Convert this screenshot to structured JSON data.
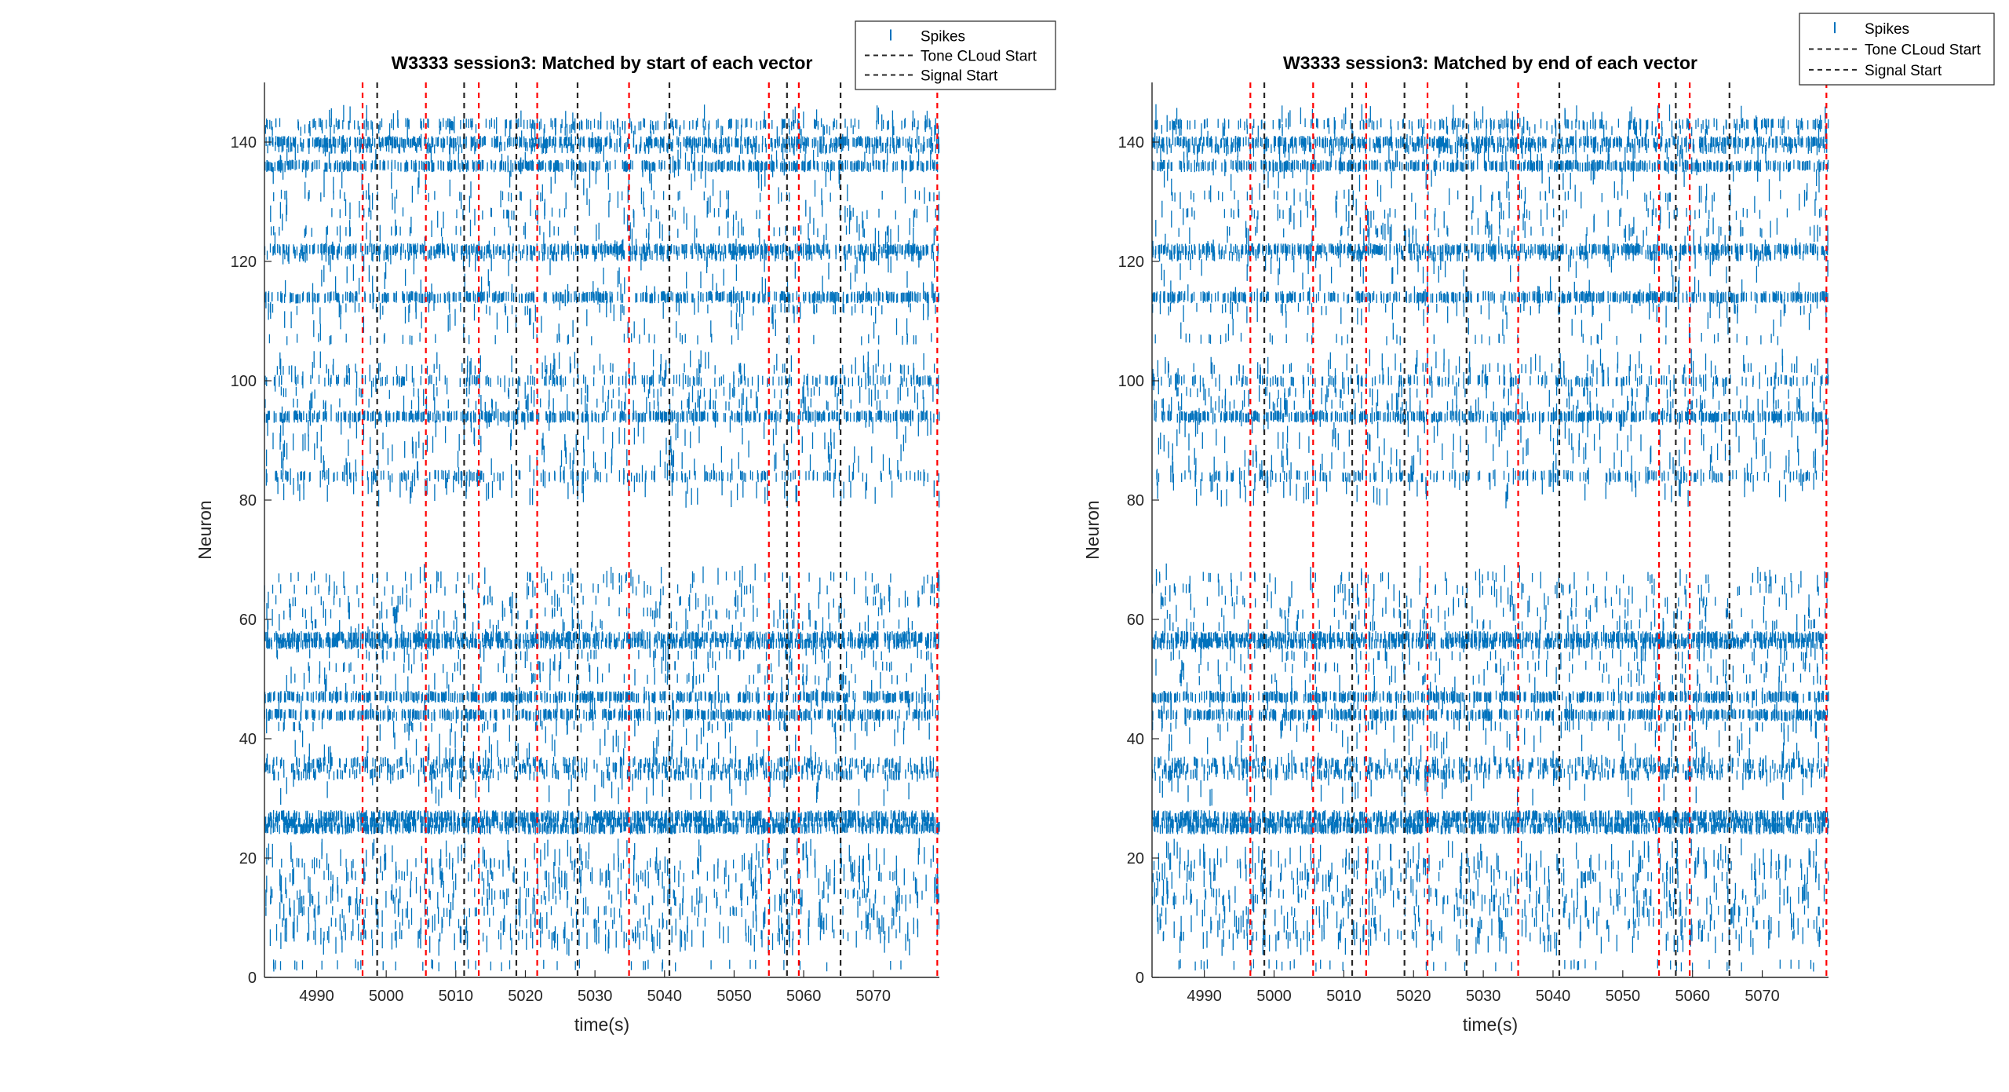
{
  "colors": {
    "spikes": "#0072BD",
    "red_lines": "#FF0000",
    "dark_lines": "#262626"
  },
  "chart_data": [
    {
      "type": "raster",
      "title": "W3333 session3: Matched by start of each vector",
      "xlabel": "time(s)",
      "ylabel": "Neuron",
      "xlim": [
        4982.5,
        5079.5
      ],
      "ylim": [
        0,
        150
      ],
      "xticks": [
        4990,
        5000,
        5010,
        5020,
        5030,
        5040,
        5050,
        5060,
        5070
      ],
      "yticks": [
        0,
        20,
        40,
        60,
        80,
        100,
        120,
        140
      ],
      "legend": {
        "position": "outside-top-right",
        "entries": [
          "Spikes",
          "Tone CLoud Start",
          "Signal Start"
        ]
      },
      "red_dashed_x": [
        4996.6,
        5005.7,
        5013.3,
        5021.7,
        5034.9,
        5055.0,
        5059.3,
        5079.2
      ],
      "dark_dashed_x": [
        4998.7,
        5011.2,
        5018.7,
        5027.5,
        5040.7,
        5057.6,
        5065.3
      ],
      "neuron_rows": {
        "dense": [
          25,
          26,
          27,
          44,
          47,
          56,
          57,
          94,
          114,
          122,
          136,
          140
        ],
        "medium": [
          34,
          35,
          36,
          84,
          100,
          121,
          139,
          143
        ],
        "sparse": [
          2,
          7,
          9,
          11,
          13,
          14,
          17,
          19,
          42,
          50,
          52,
          54,
          59,
          61,
          63,
          65,
          67,
          96,
          98,
          102,
          107,
          112,
          125,
          128,
          131,
          142
        ]
      }
    },
    {
      "type": "raster",
      "title": "W3333 session3: Matched by end of each vector",
      "xlabel": "time(s)",
      "ylabel": "Neuron",
      "xlim": [
        4982.5,
        5079.5
      ],
      "ylim": [
        0,
        150
      ],
      "xticks": [
        4990,
        5000,
        5010,
        5020,
        5030,
        5040,
        5050,
        5060,
        5070
      ],
      "yticks": [
        0,
        20,
        40,
        60,
        80,
        100,
        120,
        140
      ],
      "legend": {
        "position": "outside-top-right",
        "entries": [
          "Spikes",
          "Tone CLoud Start",
          "Signal Start"
        ]
      },
      "red_dashed_x": [
        4996.6,
        5005.6,
        5013.2,
        5022.0,
        5035.0,
        5055.2,
        5059.6,
        5079.2
      ],
      "dark_dashed_x": [
        4998.6,
        5011.2,
        5018.7,
        5027.6,
        5040.9,
        5057.6,
        5065.3
      ],
      "neuron_rows": {
        "dense": [
          25,
          26,
          27,
          44,
          47,
          56,
          57,
          94,
          114,
          122,
          136,
          140
        ],
        "medium": [
          34,
          35,
          36,
          84,
          100,
          121,
          139,
          143
        ],
        "sparse": [
          2,
          7,
          9,
          11,
          13,
          14,
          17,
          19,
          42,
          50,
          52,
          54,
          59,
          61,
          63,
          65,
          67,
          96,
          98,
          102,
          107,
          112,
          125,
          128,
          131,
          142
        ]
      }
    }
  ]
}
